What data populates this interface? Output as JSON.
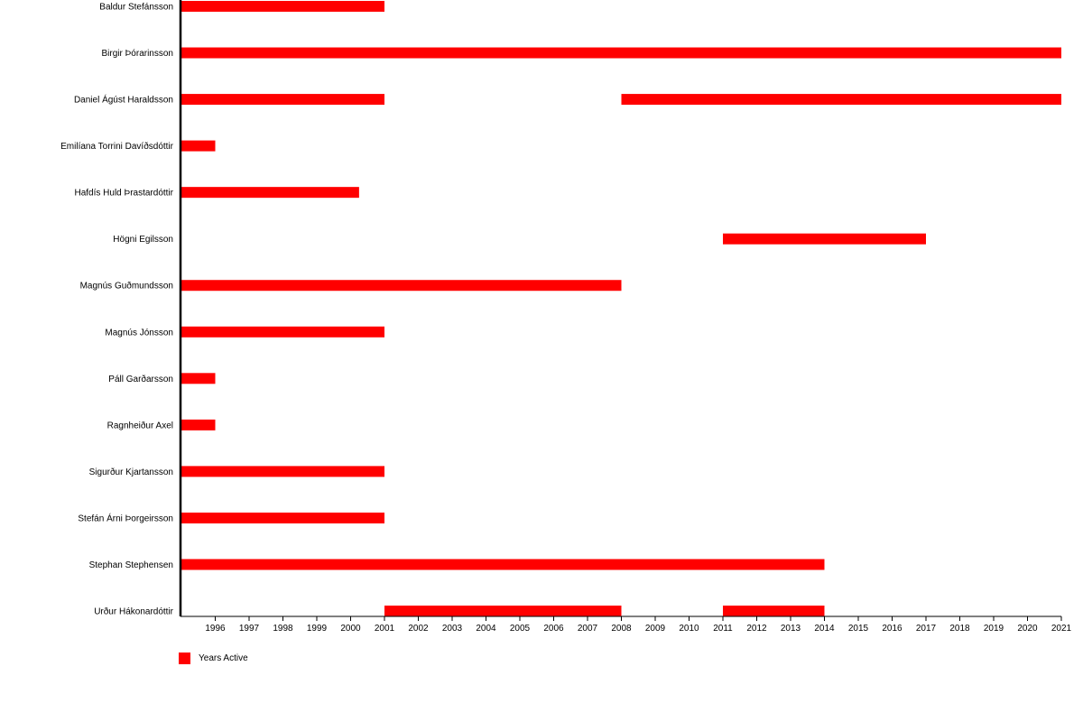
{
  "chart_data": {
    "type": "bar",
    "orientation": "horizontal-timeline",
    "title": "",
    "xlabel": "",
    "ylabel": "",
    "xlim": [
      1995,
      2021
    ],
    "x_ticks": [
      1996,
      1997,
      1998,
      1999,
      2000,
      2001,
      2002,
      2003,
      2004,
      2005,
      2006,
      2007,
      2008,
      2009,
      2010,
      2011,
      2012,
      2013,
      2014,
      2015,
      2016,
      2017,
      2018,
      2019,
      2020,
      2021
    ],
    "grid": false,
    "legend": {
      "position": "bottom-left",
      "entries": [
        "Years Active"
      ]
    },
    "series": [
      {
        "name": "Years Active",
        "color": "#ff0000",
        "rows": [
          {
            "label": "Baldur Stefánsson",
            "spans": [
              [
                1995,
                2001
              ]
            ]
          },
          {
            "label": "Birgir Þórarinsson",
            "spans": [
              [
                1995,
                2021
              ]
            ]
          },
          {
            "label": "Daniel Ágúst Haraldsson",
            "spans": [
              [
                1995,
                2001
              ],
              [
                2008,
                2021
              ]
            ]
          },
          {
            "label": "Emilíana Torrini Davíðsdóttir",
            "spans": [
              [
                1995,
                1996
              ]
            ]
          },
          {
            "label": "Hafdís Huld Þrastardóttir",
            "spans": [
              [
                1995,
                2000.25
              ]
            ]
          },
          {
            "label": "Högni Egilsson",
            "spans": [
              [
                2011,
                2017
              ]
            ]
          },
          {
            "label": "Magnús Guðmundsson",
            "spans": [
              [
                1995,
                2008
              ]
            ]
          },
          {
            "label": "Magnús Jónsson",
            "spans": [
              [
                1995,
                2001
              ]
            ]
          },
          {
            "label": "Páll Garðarsson",
            "spans": [
              [
                1995,
                1996
              ]
            ]
          },
          {
            "label": "Ragnheiður Axel",
            "spans": [
              [
                1995,
                1996
              ]
            ]
          },
          {
            "label": "Sigurður Kjartansson",
            "spans": [
              [
                1995,
                2001
              ]
            ]
          },
          {
            "label": "Stefán Árni Þorgeirsson",
            "spans": [
              [
                1995,
                2001
              ]
            ]
          },
          {
            "label": "Stephan Stephensen",
            "spans": [
              [
                1995,
                2014
              ]
            ]
          },
          {
            "label": "Urður Hákonardóttir",
            "spans": [
              [
                2001,
                2008
              ],
              [
                2011,
                2014
              ]
            ]
          }
        ]
      }
    ]
  }
}
